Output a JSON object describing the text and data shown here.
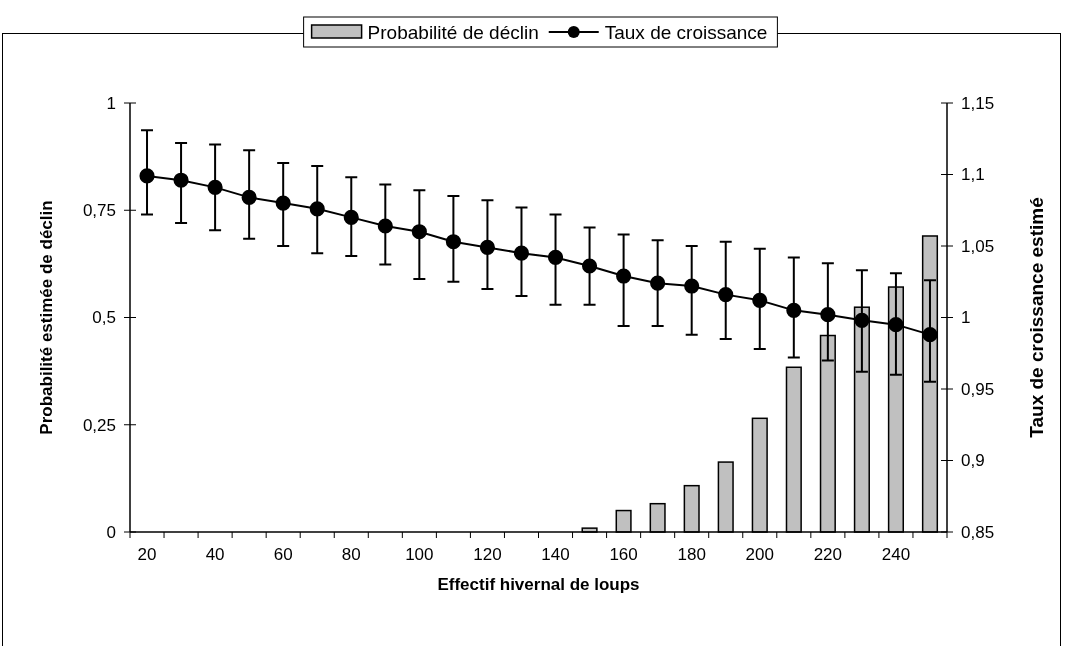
{
  "chart_data": {
    "type": "bar",
    "xlabel": "Effectif hivernal de loups",
    "ylabel": "Probabilité estimée de déclin",
    "y2label": "Taux de croissance estimé",
    "categories": [
      "20",
      null,
      "40",
      null,
      "60",
      null,
      "80",
      null,
      "100",
      null,
      "120",
      null,
      "140",
      null,
      "160",
      null,
      "180",
      null,
      "200",
      null,
      "220",
      null,
      "240",
      null
    ],
    "series": [
      {
        "name": "Probabilité de déclin",
        "color": "#c0c0c0",
        "values": [
          0,
          0,
          0,
          0,
          0,
          0,
          0,
          0,
          0,
          0,
          0,
          0,
          0,
          0.009,
          0.05,
          0.066,
          0.108,
          0.163,
          0.265,
          0.384,
          0.458,
          0.524,
          0.571,
          0.69
        ]
      },
      {
        "name": "Taux de croissance",
        "type": "line",
        "axis": "y2",
        "color": "#000000",
        "marker": "circle",
        "values": [
          1.099,
          1.096,
          1.091,
          1.084,
          1.08,
          1.076,
          1.07,
          1.064,
          1.06,
          1.053,
          1.049,
          1.045,
          1.042,
          1.036,
          1.029,
          1.024,
          1.022,
          1.016,
          1.012,
          1.005,
          1.002,
          0.998,
          0.995,
          0.988
        ],
        "errors": [
          [
            1.072,
            1.131
          ],
          [
            1.066,
            1.122
          ],
          [
            1.061,
            1.121
          ],
          [
            1.055,
            1.117
          ],
          [
            1.05,
            1.108
          ],
          [
            1.045,
            1.106
          ],
          [
            1.043,
            1.098
          ],
          [
            1.037,
            1.093
          ],
          [
            1.027,
            1.089
          ],
          [
            1.025,
            1.085
          ],
          [
            1.02,
            1.082
          ],
          [
            1.015,
            1.077
          ],
          [
            1.009,
            1.072
          ],
          [
            1.009,
            1.063
          ],
          [
            0.994,
            1.058
          ],
          [
            0.994,
            1.054
          ],
          [
            0.988,
            1.05
          ],
          [
            0.985,
            1.053
          ],
          [
            0.978,
            1.048
          ],
          [
            0.972,
            1.042
          ],
          [
            0.97,
            1.038
          ],
          [
            0.962,
            1.033
          ],
          [
            0.96,
            1.031
          ],
          [
            0.955,
            1.026
          ]
        ]
      }
    ],
    "ylim": [
      0,
      1
    ],
    "yticks": [
      0,
      {
        "value": 0.25,
        "label": "0,25"
      },
      {
        "value": 0.5,
        "label": "0,5"
      },
      {
        "value": 0.75,
        "label": "0,75"
      },
      1
    ],
    "y2lim": [
      0.85,
      1.15
    ],
    "y2ticks": [
      {
        "value": 0.85,
        "label": "0,85"
      },
      {
        "value": 0.9,
        "label": "0,9"
      },
      {
        "value": 0.95,
        "label": "0,95"
      },
      1,
      {
        "value": 1.05,
        "label": "1,05"
      },
      {
        "value": 1.1,
        "label": "1,1"
      },
      {
        "value": 1.15,
        "label": "1,15"
      }
    ],
    "grid": false,
    "legend": "top"
  }
}
